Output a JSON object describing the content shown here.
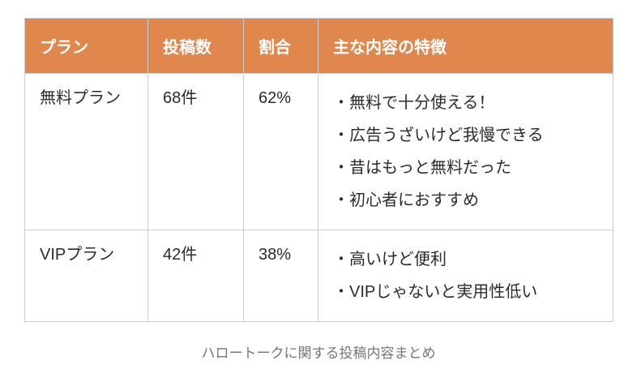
{
  "accent_color": "#E0874D",
  "table": {
    "headers": {
      "plan": "プラン",
      "count": "投稿数",
      "ratio": "割合",
      "features": "主な内容の特徴"
    },
    "rows": [
      {
        "plan": "無料プラン",
        "count": "68件",
        "ratio": "62%",
        "features": [
          "・無料で十分使える！",
          "・広告うざいけど我慢できる",
          "・昔はもっと無料だった",
          "・初心者におすすめ"
        ]
      },
      {
        "plan": "VIPプラン",
        "count": "42件",
        "ratio": "38%",
        "features": [
          "・高いけど便利",
          "・VIPじゃないと実用性低い"
        ]
      }
    ]
  },
  "caption": "ハロートークに関する投稿内容まとめ",
  "chart_data": {
    "type": "table",
    "title": "ハロートークに関する投稿内容まとめ",
    "columns": [
      "プラン",
      "投稿数",
      "割合",
      "主な内容の特徴"
    ],
    "rows": [
      [
        "無料プラン",
        "68件",
        "62%",
        "・無料で十分使える！ ・広告うざいけど我慢できる ・昔はもっと無料だった ・初心者におすすめ"
      ],
      [
        "VIPプラン",
        "42件",
        "38%",
        "・高いけど便利 ・VIPじゃないと実用性低い"
      ]
    ]
  }
}
